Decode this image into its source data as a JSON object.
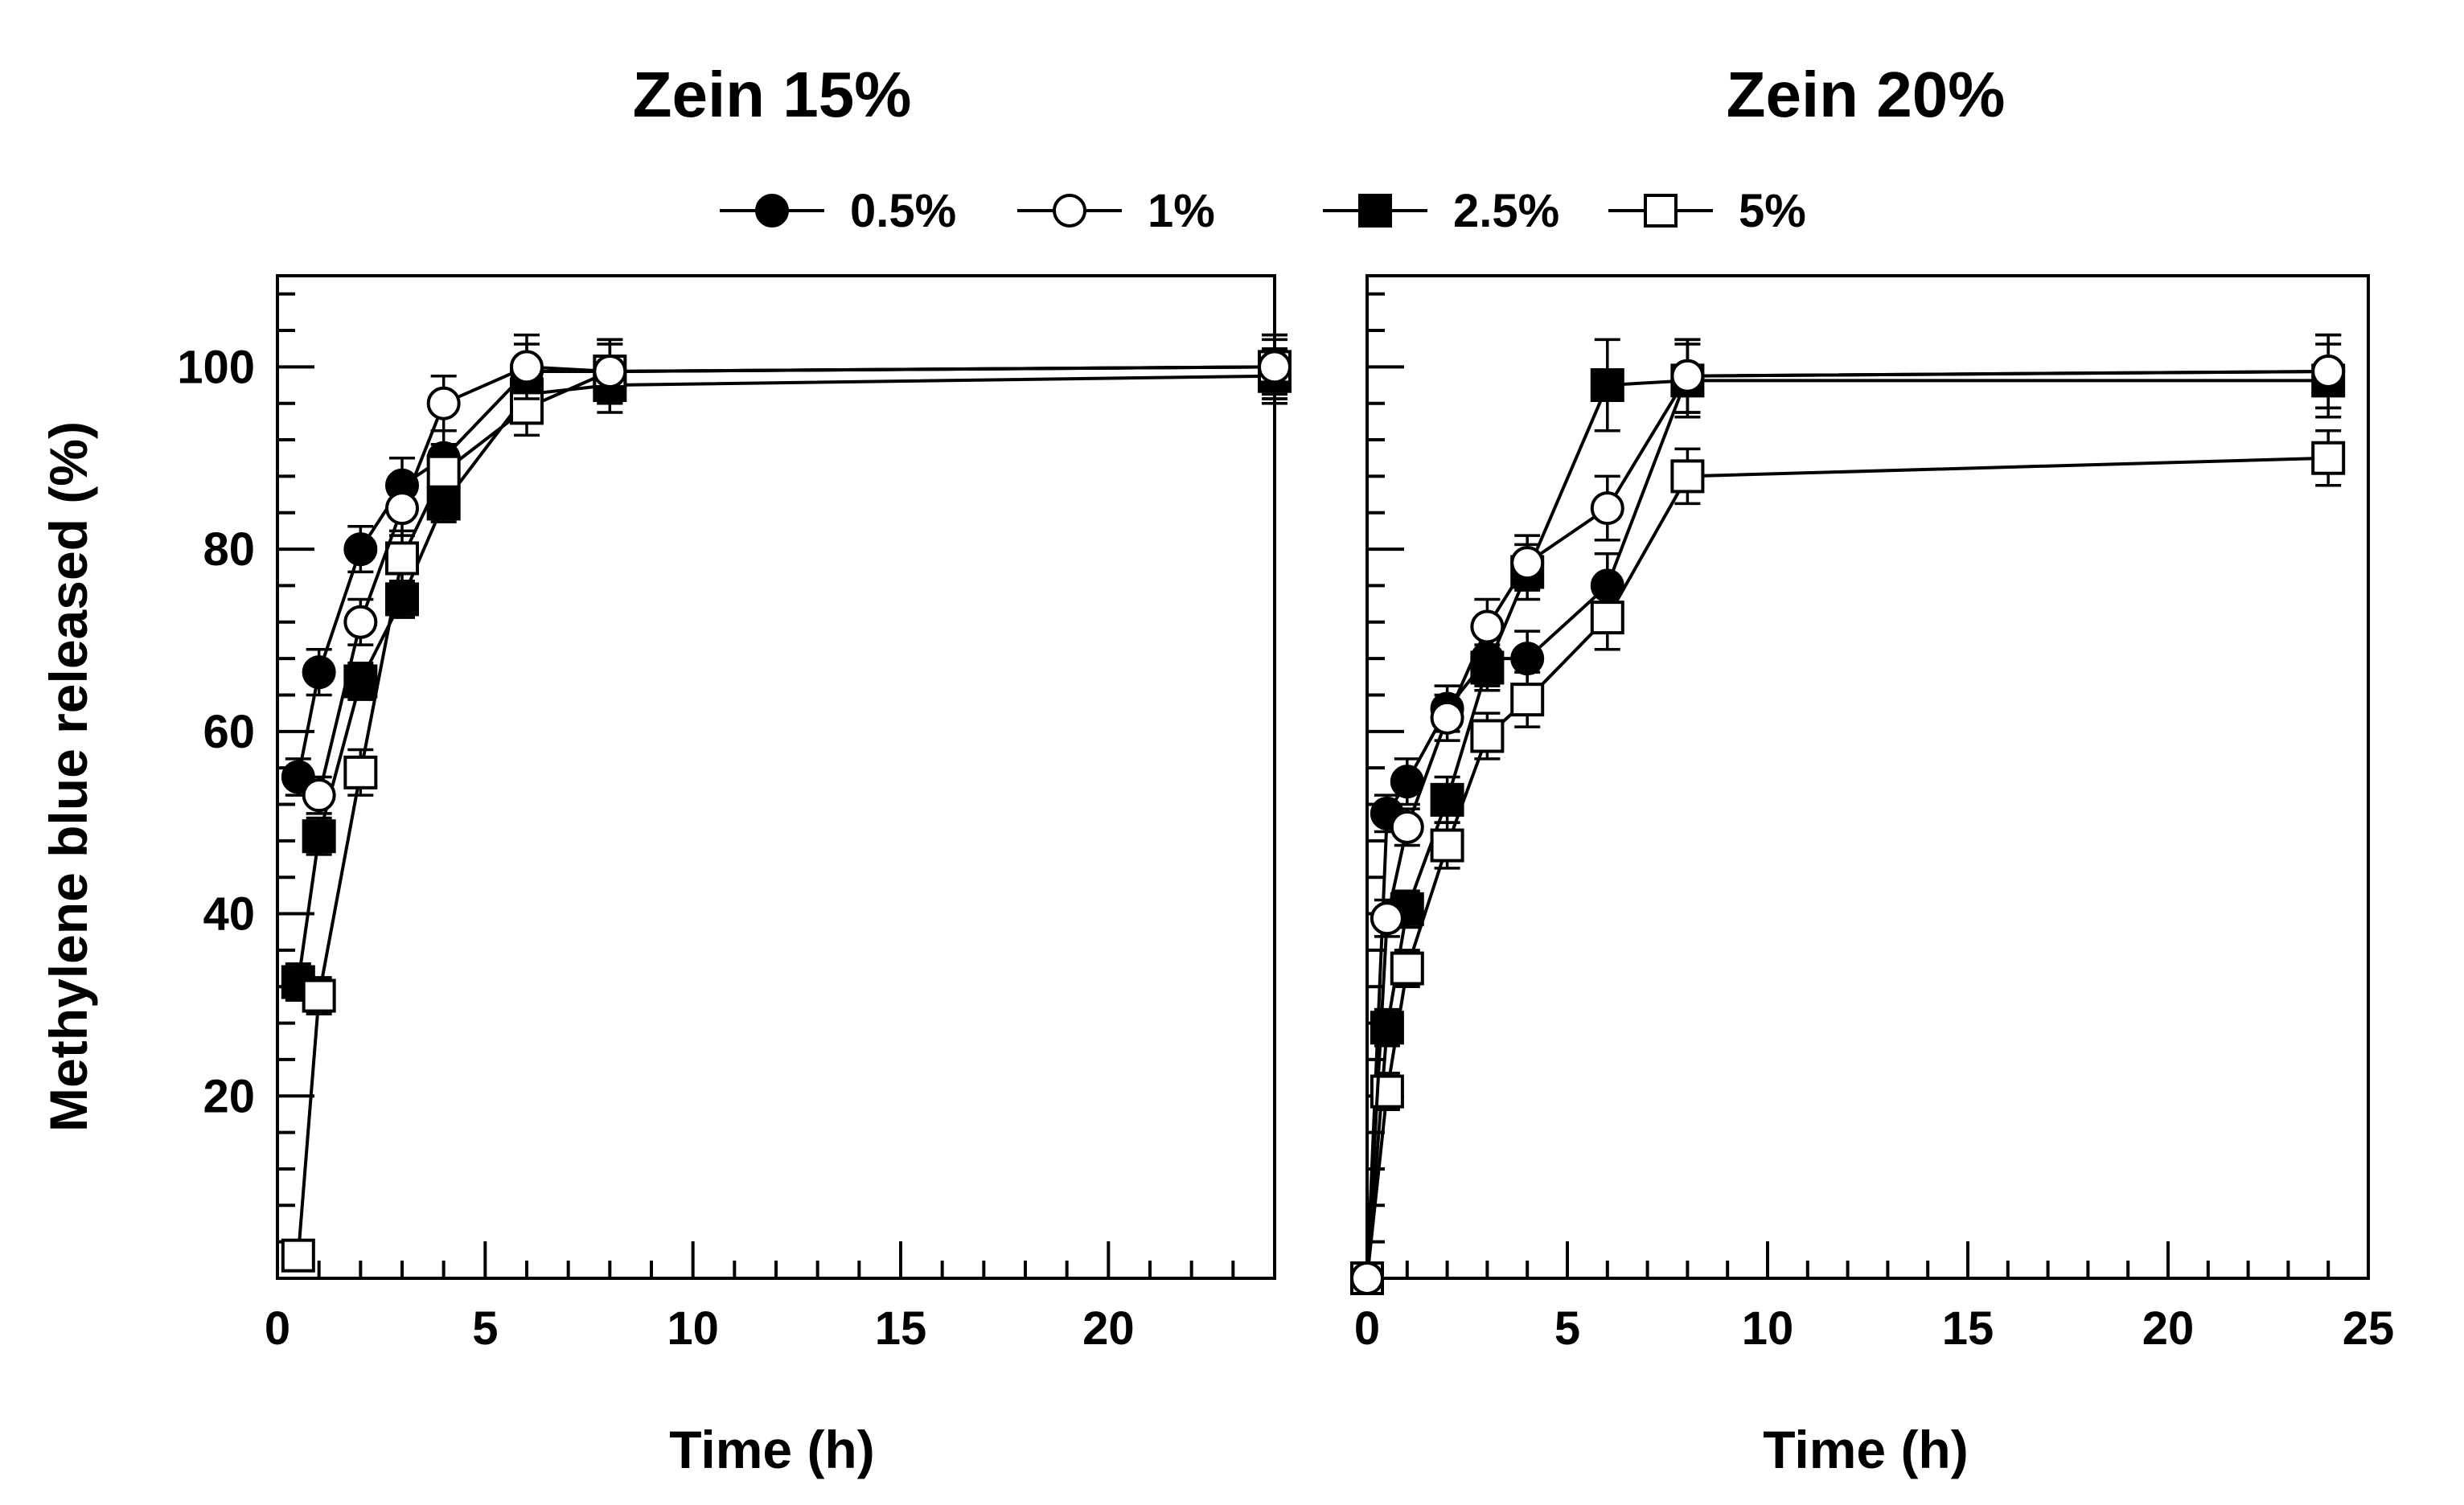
{
  "figure": {
    "ylabel": "Methylene blue released (%)",
    "legend": [
      {
        "label": "0.5%",
        "marker": "circle",
        "fill": "#000000"
      },
      {
        "label": "1%",
        "marker": "circle",
        "fill": "#ffffff"
      },
      {
        "label": "2.5%",
        "marker": "square",
        "fill": "#000000"
      },
      {
        "label": "5%",
        "marker": "square",
        "fill": "#ffffff"
      }
    ]
  },
  "chart_data": [
    {
      "type": "line",
      "title": "Zein 15%",
      "xlabel": "Time (h)",
      "ylabel": "Methylene blue released (%)",
      "xlim": [
        0,
        24
      ],
      "ylim": [
        0,
        110
      ],
      "xticks": [
        0,
        5,
        10,
        15,
        20
      ],
      "yticks": [
        20,
        40,
        60,
        80,
        100
      ],
      "series": [
        {
          "name": "0.5%",
          "x": [
            0.5,
            1,
            2,
            3,
            4,
            6,
            8,
            24
          ],
          "y": [
            55,
            66.5,
            80,
            87,
            90,
            99.5,
            99.5,
            100
          ],
          "err": [
            2,
            2.5,
            2.5,
            3,
            3,
            3,
            3,
            3
          ]
        },
        {
          "name": "1%",
          "x": [
            1,
            2,
            3,
            4,
            6,
            8,
            24
          ],
          "y": [
            53,
            72,
            84.5,
            96,
            100,
            99.5,
            100
          ],
          "err": [
            2,
            2.5,
            3,
            3,
            3.5,
            3.5,
            3.5
          ]
        },
        {
          "name": "2.5%",
          "x": [
            0.5,
            1,
            2,
            3,
            4,
            6,
            8,
            24
          ],
          "y": [
            32.5,
            48.5,
            65.5,
            74.5,
            85,
            97,
            98,
            99
          ],
          "err": [
            2,
            2,
            2,
            2,
            2,
            3,
            3,
            3
          ]
        },
        {
          "name": "5%",
          "x": [
            0.5,
            1,
            2,
            3,
            4,
            6,
            8,
            24
          ],
          "y": [
            2.5,
            31,
            55.5,
            79,
            88.5,
            95.5,
            99.5,
            100
          ],
          "err": [
            1,
            2,
            2.5,
            3,
            3,
            3,
            3.5,
            3.5
          ]
        }
      ]
    },
    {
      "type": "line",
      "title": "Zein 20%",
      "xlabel": "Time (h)",
      "ylabel": "",
      "xlim": [
        0,
        25
      ],
      "ylim": [
        0,
        110
      ],
      "xticks": [
        0,
        5,
        10,
        15,
        20,
        25
      ],
      "yticks": [
        20,
        40,
        60,
        80,
        100
      ],
      "series": [
        {
          "name": "0.5%",
          "x": [
            0,
            0.5,
            1,
            2,
            3,
            4,
            6,
            8,
            24
          ],
          "y": [
            0,
            51,
            54.5,
            62.5,
            68,
            68,
            76,
            99,
            99.5
          ],
          "err": [
            0,
            2,
            2.5,
            2.5,
            3,
            3,
            3.5,
            4,
            4
          ]
        },
        {
          "name": "1%",
          "x": [
            0,
            0.5,
            1,
            2,
            3,
            4,
            6,
            8,
            24
          ],
          "y": [
            0,
            39.5,
            49.5,
            61.5,
            71.5,
            78.5,
            84.5,
            99,
            99.5
          ],
          "err": [
            0,
            2,
            2,
            2.5,
            3,
            3,
            3.5,
            4,
            4
          ]
        },
        {
          "name": "2.5%",
          "x": [
            0,
            0.5,
            1,
            2,
            3,
            4,
            6,
            8,
            24
          ],
          "y": [
            0,
            27.5,
            40.5,
            52.5,
            67,
            77.5,
            98,
            98.5,
            98.5
          ],
          "err": [
            0,
            2,
            2,
            2.5,
            2.5,
            3,
            5,
            4,
            4
          ]
        },
        {
          "name": "5%",
          "x": [
            0,
            0.5,
            1,
            2,
            3,
            4,
            6,
            8,
            24
          ],
          "y": [
            0,
            20.5,
            34,
            47.5,
            59.5,
            63.5,
            72.5,
            88,
            90
          ],
          "err": [
            0,
            2,
            2,
            2.5,
            2.5,
            3,
            3.5,
            3,
            3
          ]
        }
      ]
    }
  ]
}
